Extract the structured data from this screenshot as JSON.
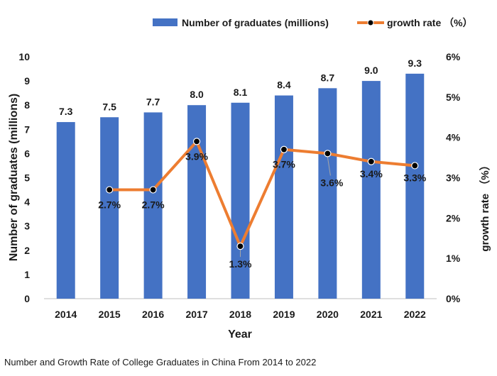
{
  "chart_data": {
    "type": "bar+line",
    "categories": [
      "2014",
      "2015",
      "2016",
      "2017",
      "2018",
      "2019",
      "2020",
      "2021",
      "2022"
    ],
    "series": [
      {
        "name": "Number of graduates (millions)",
        "type": "bar",
        "axis": "left",
        "values": [
          7.3,
          7.5,
          7.7,
          8.0,
          8.1,
          8.4,
          8.7,
          9.0,
          9.3
        ],
        "labels": [
          "7.3",
          "7.5",
          "7.7",
          "8.0",
          "8.1",
          "8.4",
          "8.7",
          "9.0",
          "9.3"
        ]
      },
      {
        "name": "growth rate （%）",
        "type": "line",
        "axis": "right",
        "values": [
          null,
          2.7,
          2.7,
          3.9,
          1.3,
          3.7,
          3.6,
          3.4,
          3.3
        ],
        "labels": [
          "",
          "2.7%",
          "2.7%",
          "3.9%",
          "1.3%",
          "3.7%",
          "3.6%",
          "3.4%",
          "3.3%"
        ]
      }
    ],
    "xlabel": "Year",
    "ylabel": "Number of graduates (millions)",
    "ylabel_right": "growth rate （%）",
    "ylim": [
      0,
      10
    ],
    "ylim_right": [
      0,
      6
    ],
    "yticks": [
      "0",
      "1",
      "2",
      "3",
      "4",
      "5",
      "6",
      "7",
      "8",
      "9",
      "10"
    ],
    "yticks_right": [
      "0%",
      "1%",
      "2%",
      "3%",
      "4%",
      "5%",
      "6%"
    ],
    "legend": [
      "Number of graduates (millions)",
      "growth rate （%）"
    ],
    "legend_position": "top",
    "grid": false,
    "colors": {
      "bar": "#4472C4",
      "line": "#ED7D31",
      "marker": "#000000"
    }
  },
  "caption": "Number and Growth Rate of College Graduates in China From 2014 to 2022"
}
